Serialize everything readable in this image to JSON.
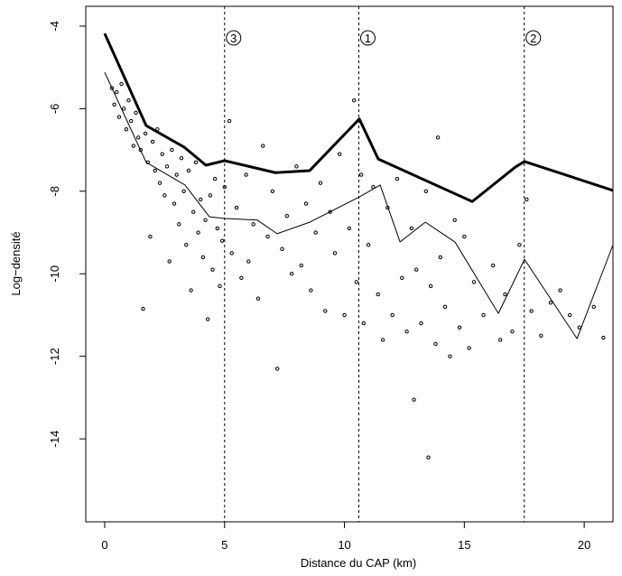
{
  "chart_data": {
    "type": "scatter",
    "x_label": "Distance du CAP (km)",
    "y_label": "Log−densité",
    "xlim": [
      -0.79,
      21.2
    ],
    "ylim": [
      -16.01,
      -3.52
    ],
    "xticks": [
      0,
      5,
      10,
      15,
      20
    ],
    "yticks": [
      -4,
      -6,
      -8,
      -10,
      -12,
      -14
    ],
    "points": {
      "x": [
        0.3,
        0.4,
        0.5,
        0.6,
        0.7,
        0.8,
        0.9,
        1.0,
        1.1,
        1.2,
        1.3,
        1.4,
        1.5,
        1.6,
        1.7,
        1.8,
        1.9,
        2.0,
        2.1,
        2.2,
        2.3,
        2.4,
        2.5,
        2.6,
        2.7,
        2.8,
        2.9,
        3.0,
        3.1,
        3.2,
        3.3,
        3.4,
        3.5,
        3.6,
        3.7,
        3.8,
        3.9,
        4.0,
        4.1,
        4.2,
        4.3,
        4.4,
        4.5,
        4.6,
        4.7,
        4.8,
        4.9,
        5.0,
        5.2,
        5.3,
        5.5,
        5.7,
        5.9,
        6.0,
        6.2,
        6.4,
        6.6,
        6.8,
        7.0,
        7.2,
        7.4,
        7.6,
        7.8,
        8.0,
        8.2,
        8.4,
        8.6,
        8.8,
        9.0,
        9.2,
        9.4,
        9.6,
        9.8,
        10.0,
        10.2,
        10.4,
        10.5,
        10.7,
        10.8,
        11.0,
        11.2,
        11.4,
        11.6,
        11.8,
        12.0,
        12.2,
        12.4,
        12.6,
        12.8,
        12.9,
        13.0,
        13.2,
        13.4,
        13.5,
        13.6,
        13.8,
        13.9,
        14.0,
        14.2,
        14.4,
        14.6,
        14.8,
        15.0,
        15.2,
        15.4,
        15.8,
        16.2,
        16.5,
        16.7,
        17.0,
        17.3,
        17.6,
        17.8,
        18.2,
        18.6,
        19.0,
        19.4,
        19.8,
        20.4,
        20.8
      ],
      "values": [
        -5.5,
        -5.9,
        -5.6,
        -6.2,
        -5.4,
        -6.0,
        -6.5,
        -5.8,
        -6.3,
        -6.9,
        -6.1,
        -6.7,
        -7.0,
        -10.85,
        -6.6,
        -7.3,
        -9.1,
        -6.8,
        -7.5,
        -6.5,
        -7.8,
        -7.1,
        -8.1,
        -7.4,
        -9.7,
        -7.0,
        -8.3,
        -7.6,
        -8.8,
        -7.2,
        -8.0,
        -9.3,
        -7.5,
        -10.4,
        -8.5,
        -7.3,
        -9.0,
        -8.2,
        -9.6,
        -8.7,
        -11.1,
        -8.1,
        -9.9,
        -7.7,
        -8.9,
        -10.3,
        -9.2,
        -7.9,
        -6.3,
        -9.5,
        -8.4,
        -10.1,
        -7.6,
        -9.7,
        -8.8,
        -10.6,
        -6.9,
        -9.1,
        -8.0,
        -12.3,
        -9.4,
        -8.6,
        -10.0,
        -7.4,
        -9.8,
        -8.3,
        -10.4,
        -9.0,
        -7.8,
        -10.9,
        -8.5,
        -9.5,
        -7.1,
        -11.0,
        -8.9,
        -5.8,
        -10.2,
        -7.6,
        -11.2,
        -9.3,
        -7.9,
        -10.5,
        -11.6,
        -8.4,
        -11.0,
        -7.7,
        -10.1,
        -11.4,
        -8.9,
        -13.05,
        -9.9,
        -11.2,
        -8.0,
        -14.45,
        -10.3,
        -11.7,
        -6.7,
        -9.6,
        -10.8,
        -12.0,
        -8.7,
        -11.3,
        -9.1,
        -11.8,
        -10.2,
        -11.0,
        -9.8,
        -11.6,
        -10.5,
        -11.4,
        -9.3,
        -8.2,
        -10.9,
        -11.5,
        -10.7,
        -10.4,
        -11.0,
        -11.3,
        -10.8,
        -11.55
      ]
    },
    "lines": [
      {
        "width": 3,
        "x": [
          0,
          1.73,
          3.31,
          4.22,
          5.0,
          7.12,
          8.55,
          10.62,
          11.41,
          15.33,
          17.14,
          17.51,
          21.2
        ],
        "values": [
          -4.18,
          -6.41,
          -6.93,
          -7.37,
          -7.26,
          -7.55,
          -7.5,
          -6.25,
          -7.22,
          -8.25,
          -7.41,
          -7.28,
          -7.98
        ]
      },
      {
        "width": 1,
        "x": [
          0,
          1.73,
          3.35,
          4.37,
          5.0,
          6.37,
          7.19,
          8.55,
          10.62,
          11.49,
          12.32,
          13.37,
          14.61,
          16.42,
          17.51,
          19.7,
          21.2
        ],
        "values": [
          -5.12,
          -7.3,
          -7.85,
          -8.62,
          -8.66,
          -8.7,
          -9.03,
          -8.75,
          -8.14,
          -7.85,
          -9.23,
          -8.75,
          -9.23,
          -10.96,
          -9.65,
          -11.57,
          -9.3
        ]
      }
    ],
    "annotations": [
      {
        "x": 5.0,
        "label": "3"
      },
      {
        "x": 10.6,
        "label": "1"
      },
      {
        "x": 17.5,
        "label": "2"
      }
    ]
  }
}
